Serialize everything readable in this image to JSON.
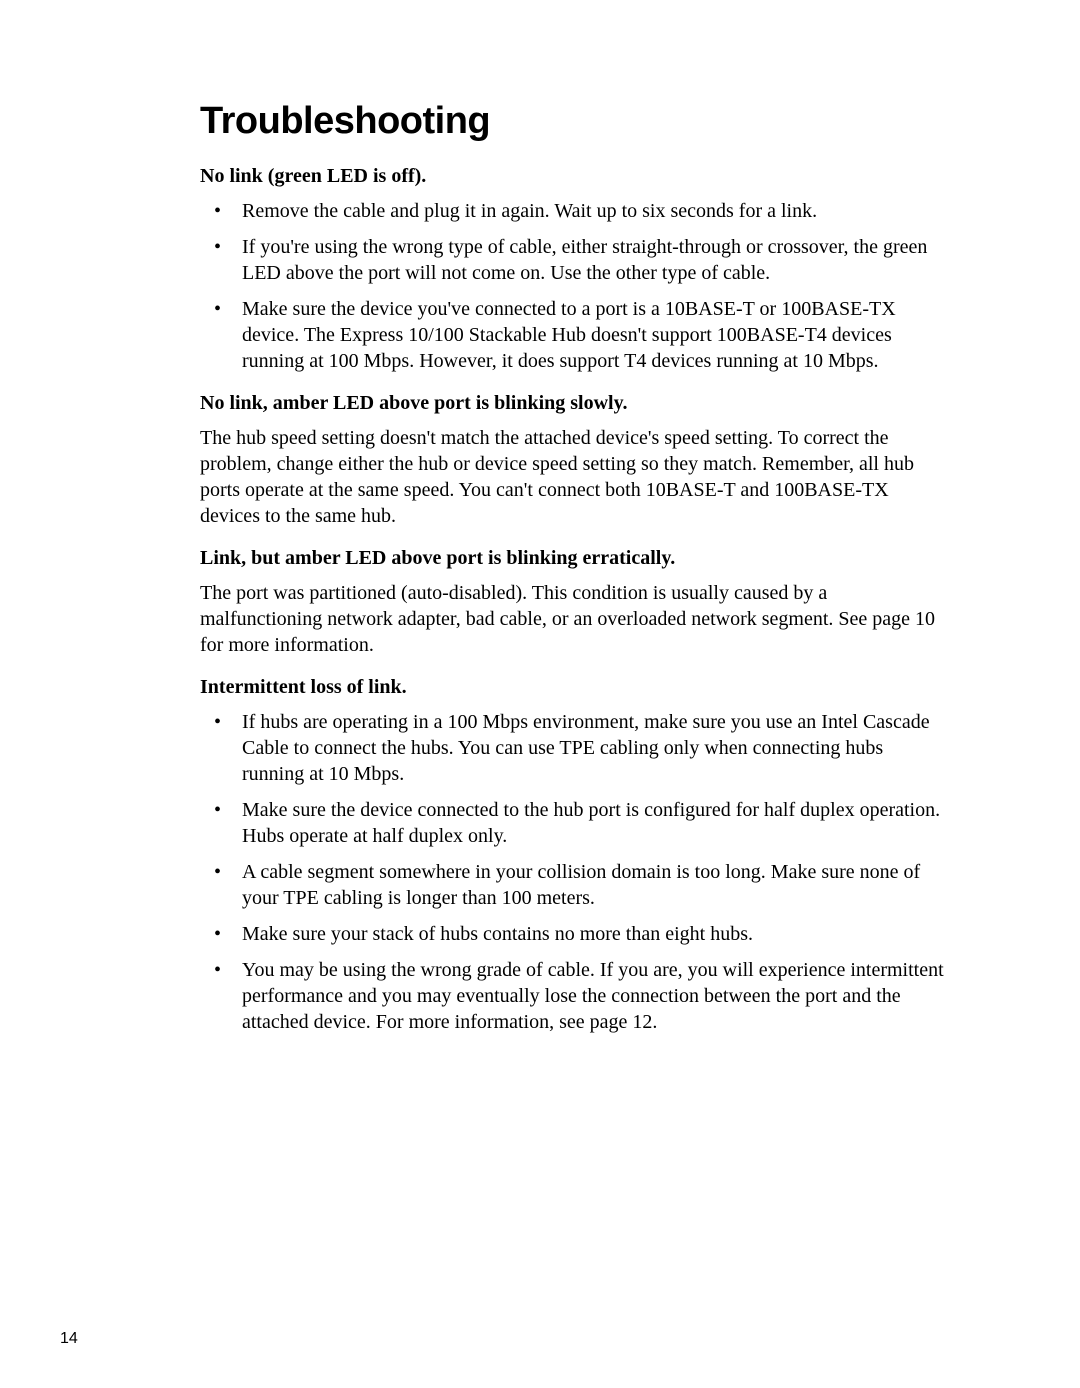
{
  "title": "Troubleshooting",
  "pageNumber": "14",
  "sections": {
    "s1": {
      "heading": "No link (green LED is off).",
      "bullets": [
        "Remove the cable and plug it in again. Wait up to six seconds for a link.",
        "If you're using the wrong type of cable, either straight-through or crossover, the green LED above the port will not come on. Use the other type of cable.",
        "Make sure the device you've connected to a port is a 10BASE-T or 100BASE-TX device. The Express 10/100 Stackable Hub doesn't support 100BASE-T4 devices running at 100 Mbps. However, it does support T4 devices running at 10 Mbps."
      ]
    },
    "s2": {
      "heading": "No link, amber LED above port is blinking slowly.",
      "body": "The hub speed setting doesn't match the attached device's speed setting. To correct the problem, change either the hub or device speed setting so they match. Remember, all hub ports operate at the same speed. You can't connect both 10BASE-T and 100BASE-TX devices to the same hub."
    },
    "s3": {
      "heading": "Link, but amber LED above port is blinking erratically.",
      "body": "The port was partitioned (auto-disabled). This condition is usually caused by a malfunctioning network adapter, bad cable, or an overloaded network segment. See page 10 for more information."
    },
    "s4": {
      "heading": "Intermittent loss of link.",
      "bullets": [
        "If hubs are operating in a 100 Mbps environment, make sure you use an Intel Cascade Cable to connect the hubs. You can use TPE cabling only when connecting hubs running at 10 Mbps.",
        "Make sure the device connected to the hub port is configured for half duplex operation. Hubs operate at half duplex only.",
        "A cable segment somewhere in your collision domain is too long. Make sure none of your TPE cabling is longer than 100 meters.",
        "Make sure your stack of hubs contains no more than eight hubs.",
        "You may be using the wrong grade of cable. If you are, you will experience intermittent performance and you may eventually lose the connection between the port and the attached device. For more information, see page 12."
      ]
    }
  }
}
